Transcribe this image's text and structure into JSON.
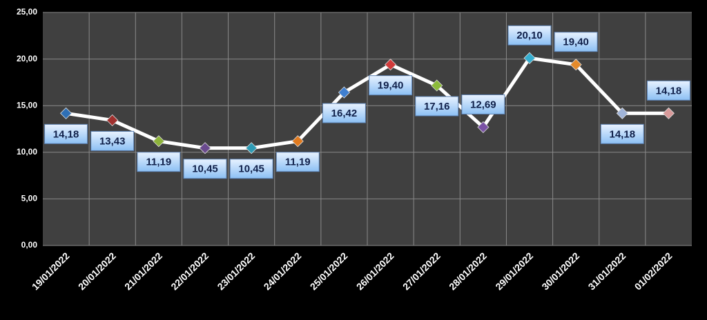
{
  "chart_data": {
    "type": "line",
    "categories": [
      "19/01/2022",
      "20/01/2022",
      "21/01/2022",
      "22/01/2022",
      "23/01/2022",
      "24/01/2022",
      "25/01/2022",
      "26/01/2022",
      "27/01/2022",
      "28/01/2022",
      "29/01/2022",
      "30/01/2022",
      "31/01/2022",
      "01/02/2022"
    ],
    "series": [
      {
        "color": "#ffffff",
        "values": [
          14.18,
          13.43,
          11.19,
          10.45,
          10.45,
          11.19,
          16.42,
          19.4,
          17.16,
          12.69,
          20.1,
          19.4,
          14.18,
          14.18
        ],
        "value_labels": [
          "14,18",
          "13,43",
          "11,19",
          "10,45",
          "10,45",
          "11,19",
          "16,42",
          "19,40",
          "17,16",
          "12,69",
          "20,10",
          "19,40",
          "14,18",
          "14,18"
        ],
        "marker_colors": [
          "#2e6fb5",
          "#a0302e",
          "#8db33a",
          "#6a4a8e",
          "#2e9bb5",
          "#e07a1f",
          "#3f7fd0",
          "#d03a3a",
          "#8cba3a",
          "#7a52a5",
          "#36aed0",
          "#e48a2a",
          "#a0b4d8",
          "#d89a9a"
        ]
      }
    ],
    "ylim": [
      0,
      25
    ],
    "yticks": [
      {
        "value": 0,
        "label": "0,00"
      },
      {
        "value": 5,
        "label": "5,00"
      },
      {
        "value": 10,
        "label": "10,00"
      },
      {
        "value": 15,
        "label": "15,00"
      },
      {
        "value": 20,
        "label": "20,00"
      },
      {
        "value": 25,
        "label": "25,00"
      }
    ],
    "grid": true
  }
}
